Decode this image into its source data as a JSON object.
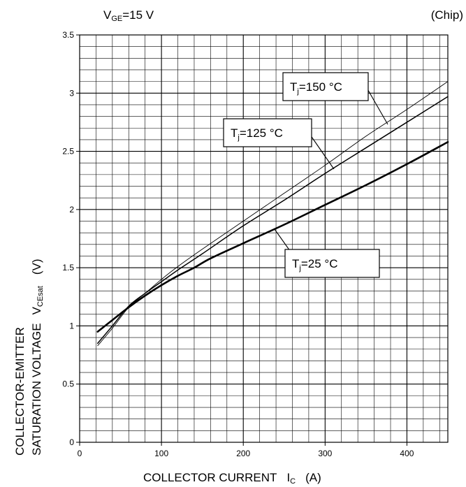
{
  "header": {
    "condition_main": "V",
    "condition_sub": "GE",
    "condition_value": "=15 V",
    "note": "(Chip)"
  },
  "chart_data": {
    "type": "line",
    "xlabel": {
      "main": "COLLECTOR CURRENT",
      "symbol": "I",
      "symbol_sub": "C",
      "unit": "(A)"
    },
    "ylabel": {
      "line1": "COLLECTOR-EMITTER",
      "line2": "SATURATION VOLTAGE",
      "symbol": "V",
      "symbol_sub": "CEsat",
      "unit": "(V)"
    },
    "xlim": [
      0,
      450
    ],
    "ylim": [
      0,
      3.5
    ],
    "x_ticks": [
      0,
      100,
      200,
      300,
      400
    ],
    "y_ticks": [
      0,
      0.5,
      1,
      1.5,
      2,
      2.5,
      3,
      3.5
    ],
    "y_tick_labels": [
      "0",
      "0.5",
      "1",
      "1.5",
      "2",
      "2.5",
      "3",
      "3.5"
    ],
    "grid": true,
    "series": [
      {
        "name": "=25 °C",
        "label_main": "T",
        "label_sub": "j",
        "label_value": "=25 °C",
        "stroke": "#000000",
        "width": 2.6,
        "x": [
          22,
          40,
          60,
          80,
          100,
          120,
          140,
          160,
          200,
          250,
          300,
          350,
          400,
          450
        ],
        "y": [
          0.95,
          1.05,
          1.16,
          1.26,
          1.35,
          1.43,
          1.5,
          1.58,
          1.71,
          1.87,
          2.04,
          2.21,
          2.39,
          2.58
        ]
      },
      {
        "name": "=125 °C",
        "label_main": "T",
        "label_sub": "j",
        "label_value": "=125 °C",
        "stroke": "#000000",
        "width": 1.5,
        "x": [
          22,
          40,
          60,
          80,
          100,
          120,
          150,
          200,
          250,
          300,
          350,
          400,
          450
        ],
        "y": [
          0.85,
          1.0,
          1.17,
          1.28,
          1.38,
          1.48,
          1.62,
          1.86,
          2.08,
          2.31,
          2.53,
          2.75,
          2.97
        ]
      },
      {
        "name": "=150 °C",
        "label_main": "T",
        "label_sub": "j",
        "label_value": "=150 °C",
        "stroke": "#000000",
        "width": 0.9,
        "x": [
          22,
          40,
          60,
          80,
          100,
          120,
          150,
          200,
          250,
          300,
          350,
          400,
          450
        ],
        "y": [
          0.83,
          0.98,
          1.16,
          1.28,
          1.4,
          1.51,
          1.66,
          1.9,
          2.14,
          2.38,
          2.63,
          2.86,
          3.1
        ]
      }
    ]
  }
}
